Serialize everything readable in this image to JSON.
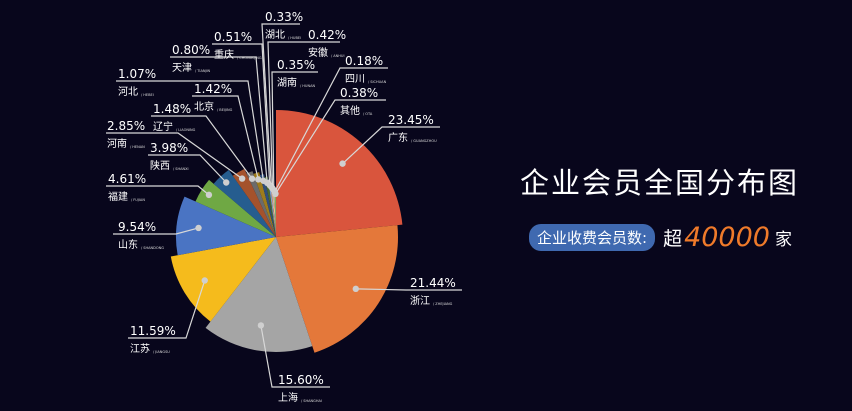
{
  "title": "企业会员全国分布图",
  "subtitle": {
    "label": "企业收费会员数:",
    "prefix": "超",
    "value": "40000",
    "suffix": "家"
  },
  "colors": {
    "background": "#08061c",
    "accent": "#ef7a2a",
    "pill": "#3f69b0"
  },
  "chart_data": {
    "type": "pie",
    "variant": "rose (radius decreases with share)",
    "unit": "%",
    "slices": [
      {
        "name": "广东",
        "pinyin": "GUANGZHOU",
        "value": 23.45,
        "label": "23.45%",
        "color": "#d9553d"
      },
      {
        "name": "浙江",
        "pinyin": "ZHEJIANG",
        "value": 21.44,
        "label": "21.44%",
        "color": "#e4783a"
      },
      {
        "name": "上海",
        "pinyin": "SHANGHAI",
        "value": 15.6,
        "label": "15.60%",
        "color": "#a5a5a5"
      },
      {
        "name": "江苏",
        "pinyin": "JIANGSU",
        "value": 11.59,
        "label": "11.59%",
        "color": "#f5bb1c"
      },
      {
        "name": "山东",
        "pinyin": "SHANDONG",
        "value": 9.54,
        "label": "9.54%",
        "color": "#4a74c3"
      },
      {
        "name": "福建",
        "pinyin": "FUJIAN",
        "value": 4.61,
        "label": "4.61%",
        "color": "#6fa844"
      },
      {
        "name": "陕西",
        "pinyin": "SHANXI",
        "value": 3.98,
        "label": "3.98%",
        "color": "#265d8f"
      },
      {
        "name": "河南",
        "pinyin": "HENAN",
        "value": 2.85,
        "label": "2.85%",
        "color": "#a4522c"
      },
      {
        "name": "辽宁",
        "pinyin": "LIAONING",
        "value": 1.48,
        "label": "1.48%",
        "color": "#6b6b6b"
      },
      {
        "name": "北京",
        "pinyin": "BEIJING",
        "value": 1.42,
        "label": "1.42%",
        "color": "#9e7c1c"
      },
      {
        "name": "河北",
        "pinyin": "HEBEI",
        "value": 1.07,
        "label": "1.07%",
        "color": "#2f4f7c"
      },
      {
        "name": "天津",
        "pinyin": "TIANJIN",
        "value": 0.8,
        "label": "0.80%",
        "color": "#4a6b30"
      },
      {
        "name": "重庆",
        "pinyin": "CHONGQING",
        "value": 0.51,
        "label": "0.51%",
        "color": "#7fa0d4"
      },
      {
        "name": "湖北",
        "pinyin": "HUBEI",
        "value": 0.33,
        "label": "0.33%",
        "color": "#f0a672"
      },
      {
        "name": "安徽",
        "pinyin": "ANHUI",
        "value": 0.42,
        "label": "0.42%",
        "color": "#c7c7c7"
      },
      {
        "name": "湖南",
        "pinyin": "HUNAN",
        "value": 0.35,
        "label": "0.35%",
        "color": "#ffd36b"
      },
      {
        "name": "四川",
        "pinyin": "SICHUAN",
        "value": 0.18,
        "label": "0.18%",
        "color": "#7fa8e0"
      },
      {
        "name": "其他",
        "pinyin": "OTA",
        "value": 0.38,
        "label": "0.38%",
        "color": "#8bc060"
      }
    ]
  }
}
